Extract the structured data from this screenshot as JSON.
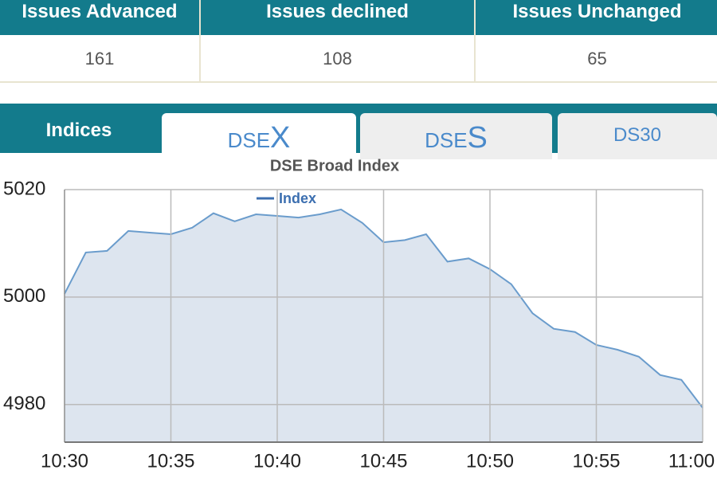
{
  "table": {
    "headers": [
      "Issues Advanced",
      "Issues declined",
      "Issues Unchanged"
    ],
    "values": [
      161,
      108,
      65
    ]
  },
  "tabs": [
    {
      "label": "Indices"
    },
    {
      "label": "DSE",
      "mark": "X"
    },
    {
      "label": "DSE",
      "mark": "S"
    },
    {
      "label": "DS30"
    }
  ],
  "chart_data": {
    "type": "area",
    "title": "DSE Broad Index",
    "x": [
      "10:30",
      "10:31",
      "10:32",
      "10:33",
      "10:34",
      "10:35",
      "10:36",
      "10:37",
      "10:38",
      "10:39",
      "10:40",
      "10:41",
      "10:42",
      "10:43",
      "10:44",
      "10:45",
      "10:46",
      "10:47",
      "10:48",
      "10:49",
      "10:50",
      "10:51",
      "10:52",
      "10:53",
      "10:54",
      "10:55",
      "10:56",
      "10:57",
      "10:58",
      "10:59",
      "11:00"
    ],
    "series": [
      {
        "name": "Index",
        "color": "#6a9ccc",
        "values": [
          5000.6,
          5008.3,
          5008.6,
          5012.3,
          5012,
          5011.7,
          5012.9,
          5015.6,
          5014.1,
          5015.4,
          5015.1,
          5014.8,
          5015.4,
          5016.3,
          5013.8,
          5010.2,
          5010.6,
          5011.7,
          5006.6,
          5007.2,
          5005.2,
          5002.4,
          4997,
          4994.1,
          4993.5,
          4991.1,
          4990.2,
          4988.9,
          4985.5,
          4984.6,
          4979.4
        ]
      }
    ],
    "xlim": [
      "10:30",
      "11:00"
    ],
    "xticks": [
      "10:30",
      "10:35",
      "10:40",
      "10:45",
      "10:50",
      "10:55",
      "11:00"
    ],
    "ylim": [
      4973,
      5020
    ],
    "yticks": [
      4980,
      5000,
      5020
    ],
    "grid": true
  }
}
